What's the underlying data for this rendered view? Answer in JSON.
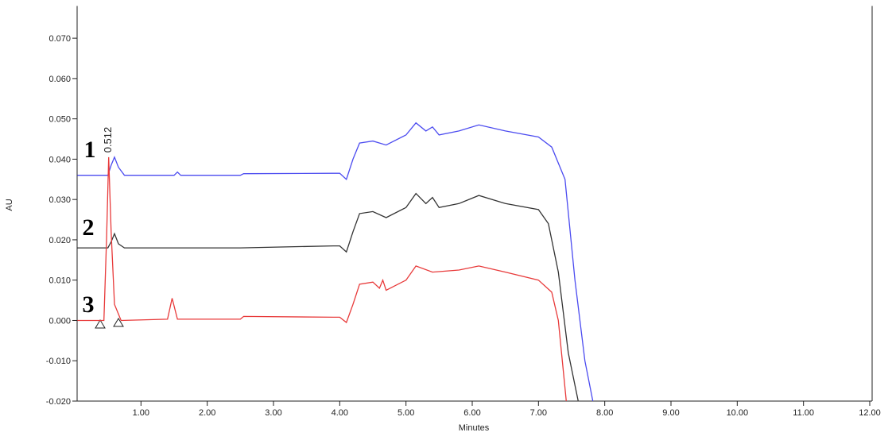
{
  "chart_data": {
    "type": "line",
    "x_label": "Minutes",
    "y_label": "AU",
    "peak_label": "0.512",
    "trace_labels": [
      "1",
      "2",
      "3"
    ],
    "xlim": [
      0,
      12
    ],
    "ylim": [
      -0.02,
      0.078
    ],
    "xticks": [
      {
        "value": 1,
        "label": "1.00"
      },
      {
        "value": 2,
        "label": "2.00"
      },
      {
        "value": 3,
        "label": "3.00"
      },
      {
        "value": 4,
        "label": "4.00"
      },
      {
        "value": 5,
        "label": "5.00"
      },
      {
        "value": 6,
        "label": "6.00"
      },
      {
        "value": 7,
        "label": "7.00"
      },
      {
        "value": 8,
        "label": "8.00"
      },
      {
        "value": 9,
        "label": "9.00"
      },
      {
        "value": 10,
        "label": "10.00"
      },
      {
        "value": 11,
        "label": "11.00"
      },
      {
        "value": 12,
        "label": "12.00"
      }
    ],
    "yticks": [
      {
        "value": -0.02,
        "label": "-0.020"
      },
      {
        "value": -0.01,
        "label": "-0.010"
      },
      {
        "value": 0,
        "label": "0.000"
      },
      {
        "value": 0.01,
        "label": "0.010"
      },
      {
        "value": 0.02,
        "label": "0.020"
      },
      {
        "value": 0.03,
        "label": "0.030"
      },
      {
        "value": 0.04,
        "label": "0.040"
      },
      {
        "value": 0.05,
        "label": "0.050"
      },
      {
        "value": 0.06,
        "label": "0.060"
      },
      {
        "value": 0.07,
        "label": "0.070"
      }
    ],
    "series": [
      {
        "color": "#4b4bf0",
        "x": [
          0.04,
          0.5,
          0.55,
          0.6,
          0.66,
          0.75,
          1.5,
          1.55,
          1.6,
          2.5,
          2.55,
          3.9,
          4.0,
          4.1,
          4.2,
          4.3,
          4.5,
          4.7,
          5.0,
          5.15,
          5.3,
          5.4,
          5.5,
          5.8,
          6.1,
          6.5,
          7.0,
          7.2,
          7.4,
          7.55,
          7.7,
          7.82
        ],
        "values": [
          0.036,
          0.036,
          0.0385,
          0.0405,
          0.038,
          0.036,
          0.036,
          0.0368,
          0.036,
          0.036,
          0.0364,
          0.0365,
          0.0365,
          0.035,
          0.04,
          0.044,
          0.0445,
          0.0435,
          0.046,
          0.049,
          0.047,
          0.048,
          0.046,
          0.047,
          0.0485,
          0.047,
          0.0455,
          0.043,
          0.035,
          0.01,
          -0.01,
          -0.02
        ]
      },
      {
        "color": "#333333",
        "x": [
          0.04,
          0.5,
          0.55,
          0.6,
          0.66,
          0.75,
          2.5,
          3.9,
          4.0,
          4.1,
          4.2,
          4.3,
          4.5,
          4.7,
          5.0,
          5.15,
          5.3,
          5.4,
          5.5,
          5.8,
          6.1,
          6.5,
          7.0,
          7.15,
          7.3,
          7.45,
          7.6
        ],
        "values": [
          0.018,
          0.018,
          0.0195,
          0.0215,
          0.019,
          0.018,
          0.018,
          0.0185,
          0.0185,
          0.017,
          0.022,
          0.0265,
          0.027,
          0.0255,
          0.028,
          0.0315,
          0.029,
          0.0305,
          0.028,
          0.029,
          0.031,
          0.029,
          0.0275,
          0.024,
          0.012,
          -0.008,
          -0.02
        ]
      },
      {
        "color": "#e83a3a",
        "x": [
          0.04,
          0.44,
          0.48,
          0.512,
          0.55,
          0.6,
          0.7,
          1.4,
          1.47,
          1.55,
          2.5,
          2.55,
          3.9,
          4.0,
          4.1,
          4.2,
          4.3,
          4.5,
          4.6,
          4.65,
          4.7,
          5.0,
          5.15,
          5.4,
          5.8,
          6.1,
          6.5,
          7.0,
          7.2,
          7.3,
          7.42
        ],
        "values": [
          0.0,
          0.0,
          0.02,
          0.0405,
          0.022,
          0.004,
          0.0,
          0.0003,
          0.0055,
          0.0003,
          0.0003,
          0.001,
          0.0008,
          0.0008,
          -0.0005,
          0.004,
          0.009,
          0.0095,
          0.008,
          0.01,
          0.0075,
          0.01,
          0.0135,
          0.012,
          0.0125,
          0.0135,
          0.012,
          0.01,
          0.007,
          0.0,
          -0.02
        ]
      }
    ]
  }
}
